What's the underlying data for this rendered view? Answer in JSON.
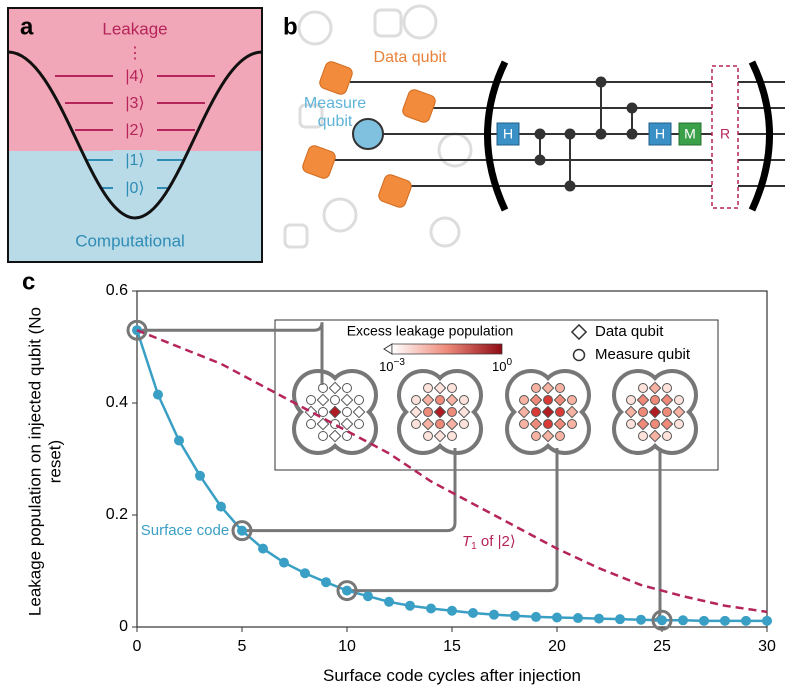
{
  "panels": {
    "a": {
      "label": "a",
      "top_text": "Leakage",
      "dots": "⋮",
      "levels": [
        "|4⟩",
        "|3⟩",
        "|2⟩",
        "|1⟩",
        "|0⟩"
      ],
      "bottom_text": "Computational"
    },
    "b": {
      "label": "b",
      "data_qubit": "Data qubit",
      "measure_qubit": "Measure qubit",
      "gates": [
        "H",
        "H",
        "M",
        "R"
      ]
    },
    "c": {
      "label": "c"
    }
  },
  "chart_data": {
    "type": "line",
    "x_label": "Surface code cycles after injection",
    "y_label": "Leakage population on injected qubit (No reset)",
    "xlim": [
      0,
      30
    ],
    "ylim": [
      0,
      0.6
    ],
    "xticks": [
      0,
      5,
      10,
      15,
      20,
      25,
      30
    ],
    "yticks": [
      0,
      0.2,
      0.4,
      0.6
    ],
    "series": [
      {
        "name": "Surface code",
        "color": "#3a9fc4",
        "style": "solid-markers",
        "x": [
          0,
          1,
          2,
          3,
          4,
          5,
          6,
          7,
          8,
          9,
          10,
          11,
          12,
          13,
          14,
          15,
          16,
          17,
          18,
          19,
          20,
          21,
          22,
          23,
          24,
          25,
          26,
          27,
          28,
          29,
          30
        ],
        "values": [
          0.53,
          0.415,
          0.333,
          0.27,
          0.215,
          0.172,
          0.14,
          0.115,
          0.096,
          0.08,
          0.065,
          0.055,
          0.045,
          0.038,
          0.033,
          0.029,
          0.025,
          0.022,
          0.02,
          0.018,
          0.017,
          0.016,
          0.015,
          0.014,
          0.013,
          0.012,
          0.012,
          0.011,
          0.011,
          0.011,
          0.011
        ]
      },
      {
        "name": {
          "symbol": "T",
          "subscript": "1",
          "text": " of |2⟩"
        },
        "color": "#b5245a",
        "style": "dashed",
        "x": [
          0,
          2,
          4,
          6,
          8,
          10,
          12,
          14,
          16,
          18,
          20,
          22,
          24,
          26,
          28,
          30
        ],
        "values": [
          0.53,
          0.5,
          0.47,
          0.43,
          0.39,
          0.35,
          0.31,
          0.26,
          0.22,
          0.18,
          0.14,
          0.105,
          0.075,
          0.055,
          0.038,
          0.027
        ]
      }
    ],
    "highlight_x": [
      0,
      5,
      10,
      25
    ],
    "inset": {
      "title": "Excess leakage population",
      "colorbar_min": {
        "base": "10",
        "exponent": "−3"
      },
      "colorbar_max": {
        "base": "10",
        "exponent": "0"
      },
      "legend": [
        "Data qubit",
        "Measure qubit"
      ]
    }
  }
}
